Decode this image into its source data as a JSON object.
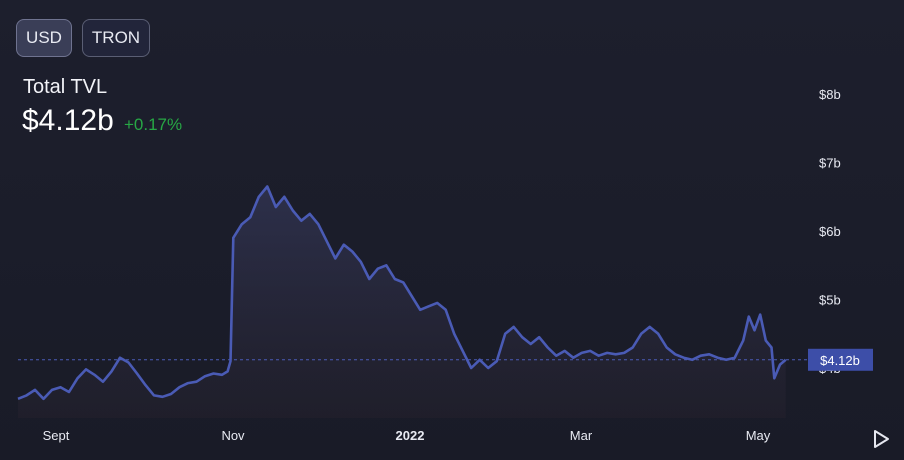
{
  "currency_toggle": {
    "usd_label": "USD",
    "tron_label": "TRON",
    "selected": "USD"
  },
  "header": {
    "label": "Total TVL",
    "value": "$4.12b",
    "change": "+0.17%"
  },
  "colors": {
    "line": "#4a5bb5",
    "change_positive": "#27a745",
    "current_badge": "#3d4ea8"
  },
  "chart_data": {
    "type": "area",
    "x_ticks": [
      "Sept",
      "Nov",
      "2022",
      "Mar",
      "May"
    ],
    "y_ticks": [
      "$8b",
      "$7b",
      "$6b",
      "$5b",
      "$4b"
    ],
    "y_tick_values": [
      8,
      7,
      6,
      5,
      4
    ],
    "ylim": [
      3.3,
      8.4
    ],
    "x_range": [
      "2021-08-18",
      "2022-05-20"
    ],
    "current_value": 4.12,
    "current_value_label": "$4.12b",
    "grid": false,
    "series": [
      {
        "points": [
          [
            "2021-08-18",
            3.55
          ],
          [
            "2021-08-21",
            3.6
          ],
          [
            "2021-08-24",
            3.68
          ],
          [
            "2021-08-27",
            3.55
          ],
          [
            "2021-08-30",
            3.68
          ],
          [
            "2021-09-02",
            3.72
          ],
          [
            "2021-09-05",
            3.65
          ],
          [
            "2021-09-08",
            3.85
          ],
          [
            "2021-09-11",
            3.98
          ],
          [
            "2021-09-14",
            3.9
          ],
          [
            "2021-09-17",
            3.8
          ],
          [
            "2021-09-20",
            3.95
          ],
          [
            "2021-09-23",
            4.15
          ],
          [
            "2021-09-26",
            4.08
          ],
          [
            "2021-09-29",
            3.92
          ],
          [
            "2021-10-02",
            3.75
          ],
          [
            "2021-10-05",
            3.6
          ],
          [
            "2021-10-08",
            3.58
          ],
          [
            "2021-10-11",
            3.62
          ],
          [
            "2021-10-14",
            3.72
          ],
          [
            "2021-10-17",
            3.78
          ],
          [
            "2021-10-20",
            3.8
          ],
          [
            "2021-10-23",
            3.88
          ],
          [
            "2021-10-26",
            3.92
          ],
          [
            "2021-10-29",
            3.9
          ],
          [
            "2021-10-31",
            3.95
          ],
          [
            "2021-11-01",
            4.1
          ],
          [
            "2021-11-02",
            5.9
          ],
          [
            "2021-11-05",
            6.1
          ],
          [
            "2021-11-08",
            6.2
          ],
          [
            "2021-11-11",
            6.5
          ],
          [
            "2021-11-14",
            6.65
          ],
          [
            "2021-11-17",
            6.35
          ],
          [
            "2021-11-20",
            6.5
          ],
          [
            "2021-11-23",
            6.3
          ],
          [
            "2021-11-26",
            6.15
          ],
          [
            "2021-11-29",
            6.25
          ],
          [
            "2021-12-02",
            6.1
          ],
          [
            "2021-12-05",
            5.85
          ],
          [
            "2021-12-08",
            5.6
          ],
          [
            "2021-12-11",
            5.8
          ],
          [
            "2021-12-14",
            5.7
          ],
          [
            "2021-12-17",
            5.55
          ],
          [
            "2021-12-20",
            5.3
          ],
          [
            "2021-12-23",
            5.45
          ],
          [
            "2021-12-26",
            5.5
          ],
          [
            "2021-12-29",
            5.3
          ],
          [
            "2022-01-01",
            5.25
          ],
          [
            "2022-01-04",
            5.05
          ],
          [
            "2022-01-07",
            4.85
          ],
          [
            "2022-01-10",
            4.9
          ],
          [
            "2022-01-13",
            4.95
          ],
          [
            "2022-01-16",
            4.85
          ],
          [
            "2022-01-19",
            4.5
          ],
          [
            "2022-01-22",
            4.25
          ],
          [
            "2022-01-25",
            4.0
          ],
          [
            "2022-01-28",
            4.12
          ],
          [
            "2022-01-31",
            4.0
          ],
          [
            "2022-02-03",
            4.1
          ],
          [
            "2022-02-06",
            4.5
          ],
          [
            "2022-02-09",
            4.6
          ],
          [
            "2022-02-12",
            4.45
          ],
          [
            "2022-02-15",
            4.35
          ],
          [
            "2022-02-18",
            4.45
          ],
          [
            "2022-02-21",
            4.3
          ],
          [
            "2022-02-24",
            4.18
          ],
          [
            "2022-02-27",
            4.25
          ],
          [
            "2022-03-02",
            4.15
          ],
          [
            "2022-03-05",
            4.22
          ],
          [
            "2022-03-08",
            4.25
          ],
          [
            "2022-03-11",
            4.18
          ],
          [
            "2022-03-14",
            4.22
          ],
          [
            "2022-03-17",
            4.2
          ],
          [
            "2022-03-20",
            4.22
          ],
          [
            "2022-03-23",
            4.3
          ],
          [
            "2022-03-26",
            4.5
          ],
          [
            "2022-03-29",
            4.6
          ],
          [
            "2022-04-01",
            4.5
          ],
          [
            "2022-04-04",
            4.3
          ],
          [
            "2022-04-07",
            4.2
          ],
          [
            "2022-04-10",
            4.15
          ],
          [
            "2022-04-13",
            4.12
          ],
          [
            "2022-04-16",
            4.18
          ],
          [
            "2022-04-19",
            4.2
          ],
          [
            "2022-04-22",
            4.15
          ],
          [
            "2022-04-25",
            4.12
          ],
          [
            "2022-04-28",
            4.15
          ],
          [
            "2022-05-01",
            4.4
          ],
          [
            "2022-05-03",
            4.75
          ],
          [
            "2022-05-05",
            4.55
          ],
          [
            "2022-05-07",
            4.78
          ],
          [
            "2022-05-09",
            4.4
          ],
          [
            "2022-05-11",
            4.3
          ],
          [
            "2022-05-12",
            3.85
          ],
          [
            "2022-05-14",
            4.05
          ],
          [
            "2022-05-16",
            4.12
          ]
        ]
      }
    ]
  }
}
